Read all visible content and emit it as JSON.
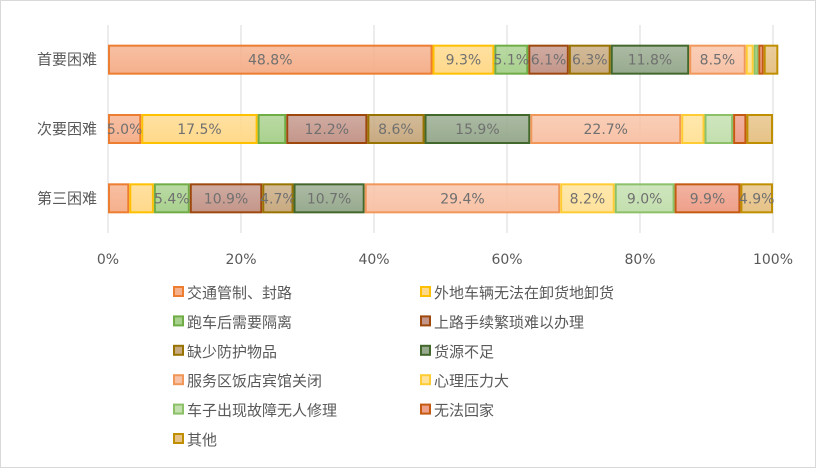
{
  "chart_data": {
    "type": "bar",
    "orientation": "horizontal",
    "stacked": "percent",
    "categories": [
      "首要困难",
      "次要困难",
      "第三困难"
    ],
    "xlim": [
      0,
      100
    ],
    "xticks": [
      "0%",
      "20%",
      "40%",
      "60%",
      "80%",
      "100%"
    ],
    "grid": true,
    "legend_position": "bottom",
    "series": [
      {
        "name": "交通管制、封路",
        "values": [
          48.8,
          5.0,
          3.2
        ],
        "labels": [
          "48.8%",
          "5.0%",
          ""
        ],
        "border": "#ED7D31",
        "fill": "#F5B08C"
      },
      {
        "name": "外地车辆无法在卸货地卸货",
        "values": [
          9.3,
          17.5,
          3.7
        ],
        "labels": [
          "9.3%",
          "17.5%",
          ""
        ],
        "border": "#FFC000",
        "fill": "#FFD98A"
      },
      {
        "name": "跑车后需要隔离",
        "values": [
          5.1,
          4.3,
          5.4
        ],
        "labels": [
          "5.1%",
          "",
          "5.4%"
        ],
        "border": "#70AD47",
        "fill": "#A9D18E"
      },
      {
        "name": "上路手续繁琐难以办理",
        "values": [
          6.1,
          12.2,
          10.9
        ],
        "labels": [
          "6.1%",
          "12.2%",
          "10.9%"
        ],
        "border": "#9E480E",
        "fill": "#C4968A"
      },
      {
        "name": "缺少防护物品",
        "values": [
          6.3,
          8.6,
          4.7
        ],
        "labels": [
          "6.3%",
          "8.6%",
          "4.7%"
        ],
        "border": "#997300",
        "fill": "#C8AA80"
      },
      {
        "name": "货源不足",
        "values": [
          11.8,
          15.9,
          10.7
        ],
        "labels": [
          "11.8%",
          "15.9%",
          "10.7%"
        ],
        "border": "#43682B",
        "fill": "#97AA8E"
      },
      {
        "name": "服务区饭店宾馆关闭",
        "values": [
          8.5,
          22.7,
          29.4
        ],
        "labels": [
          "8.5%",
          "22.7%",
          "29.4%"
        ],
        "border": "#F1975A",
        "fill": "#F8C2A6"
      },
      {
        "name": "心理压力大",
        "values": [
          1.2,
          3.5,
          8.2
        ],
        "labels": [
          "",
          "",
          "8.2%"
        ],
        "border": "#FFCD33",
        "fill": "#FFE29A"
      },
      {
        "name": "车子出现故障无人修理",
        "values": [
          0.7,
          4.3,
          9.0
        ],
        "labels": [
          "",
          "",
          "9.0%"
        ],
        "border": "#8CC168",
        "fill": "#C3DFAE"
      },
      {
        "name": "无法回家",
        "values": [
          0.8,
          2.0,
          9.9
        ],
        "labels": [
          "",
          "",
          "9.9%"
        ],
        "border": "#C55A11",
        "fill": "#EEA08A"
      },
      {
        "name": "其他",
        "values": [
          2.2,
          4.0,
          4.9
        ],
        "labels": [
          "",
          "",
          "4.9%"
        ],
        "border": "#BF8F00",
        "fill": "#E6C286"
      }
    ]
  }
}
